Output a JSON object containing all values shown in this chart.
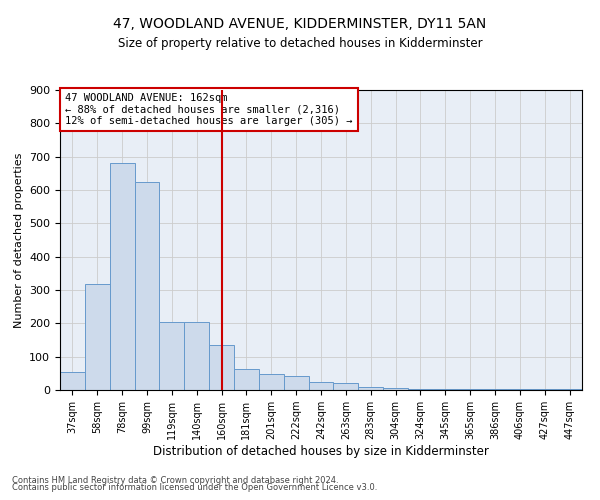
{
  "title": "47, WOODLAND AVENUE, KIDDERMINSTER, DY11 5AN",
  "subtitle": "Size of property relative to detached houses in Kidderminster",
  "xlabel": "Distribution of detached houses by size in Kidderminster",
  "ylabel": "Number of detached properties",
  "footer1": "Contains HM Land Registry data © Crown copyright and database right 2024.",
  "footer2": "Contains public sector information licensed under the Open Government Licence v3.0.",
  "annotation_line1": "47 WOODLAND AVENUE: 162sqm",
  "annotation_line2": "← 88% of detached houses are smaller (2,316)",
  "annotation_line3": "12% of semi-detached houses are larger (305) →",
  "bar_color": "#cddaeb",
  "bar_edge_color": "#6699cc",
  "vline_color": "#cc0000",
  "annotation_box_edge": "#cc0000",
  "categories": [
    "37sqm",
    "58sqm",
    "78sqm",
    "99sqm",
    "119sqm",
    "140sqm",
    "160sqm",
    "181sqm",
    "201sqm",
    "222sqm",
    "242sqm",
    "263sqm",
    "283sqm",
    "304sqm",
    "324sqm",
    "345sqm",
    "365sqm",
    "386sqm",
    "406sqm",
    "427sqm",
    "447sqm"
  ],
  "values": [
    55,
    318,
    680,
    625,
    205,
    205,
    135,
    62,
    47,
    42,
    25,
    20,
    10,
    7,
    2,
    2,
    2,
    2,
    2,
    2,
    2
  ],
  "ylim": [
    0,
    900
  ],
  "yticks": [
    0,
    100,
    200,
    300,
    400,
    500,
    600,
    700,
    800,
    900
  ],
  "grid_color": "#cccccc",
  "bg_color": "#e8eef6",
  "vline_x_index": 6
}
